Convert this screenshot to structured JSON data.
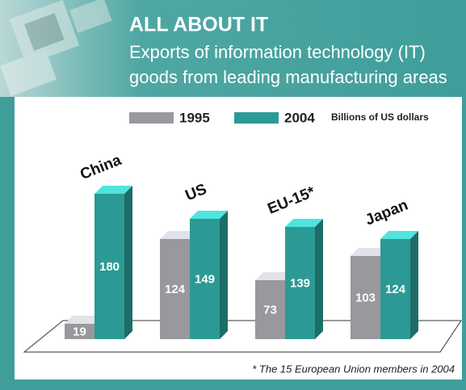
{
  "chart_data": {
    "type": "bar3d",
    "title": "ALL ABOUT IT",
    "subtitle": [
      "Exports of information technology (IT)",
      "goods from leading manufacturing areas"
    ],
    "unit_note": "Billions of US dollars",
    "footnote": "* The 15 European Union members in 2004",
    "categories": [
      "China",
      "US",
      "EU-15*",
      "Japan"
    ],
    "series": [
      {
        "name": "1995",
        "color": "#98989d",
        "values": [
          19,
          124,
          73,
          103
        ]
      },
      {
        "name": "2004",
        "color": "#2b9a95",
        "values": [
          180,
          149,
          139,
          124
        ]
      }
    ]
  }
}
